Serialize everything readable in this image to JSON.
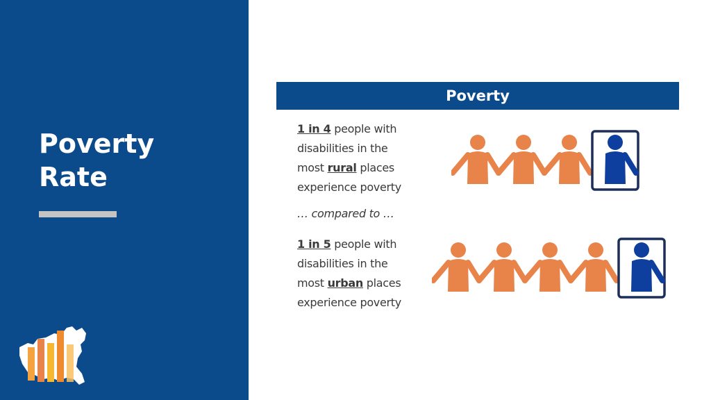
{
  "slide": {
    "title_line1": "Poverty",
    "title_line2": "Rate"
  },
  "panel": {
    "header": "Poverty",
    "rural": {
      "ratio": "1 in 4",
      "line1_rest": " people with",
      "line2": "disabilities in the",
      "line3_pre": "most ",
      "keyword": "rural",
      "line3_post": " places",
      "line4": "experience poverty",
      "people_total": 4,
      "people_highlighted": 1
    },
    "compare": "… compared to …",
    "urban": {
      "ratio": "1 in 5",
      "line1_rest": " people with",
      "line2": "disabilities in the",
      "line3_pre": "most ",
      "keyword": "urban",
      "line3_post": " places",
      "line4": "experience poverty",
      "people_total": 5,
      "people_highlighted": 1
    }
  },
  "colors": {
    "brand_blue": "#0b4b8c",
    "accent_gray": "#c4c4c4",
    "figure_orange": "#e8834a",
    "figure_blue": "#0f3f9e",
    "frame_navy": "#1b2f5a",
    "text_gray": "#3a3a3a"
  },
  "icons": {
    "logo": "bar-chart-usa-map-logo",
    "person": "person-icon"
  }
}
